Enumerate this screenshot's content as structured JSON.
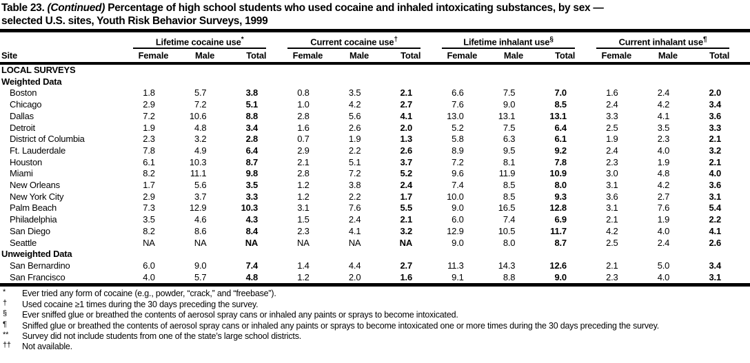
{
  "title": {
    "table_label": "Table 23.",
    "continued": "(Continued)",
    "line1_rest": "Percentage of high school students who used cocaine and inhaled intoxicating substances, by sex —",
    "line2": "selected U.S. sites, Youth Risk Behavior Surveys, 1999"
  },
  "header": {
    "site": "Site",
    "groups": [
      {
        "label": "Lifetime cocaine use",
        "marker": "*"
      },
      {
        "label": "Current cocaine use",
        "marker": "†"
      },
      {
        "label": "Lifetime inhalant use",
        "marker": "§"
      },
      {
        "label": "Current inhalant use",
        "marker": "¶"
      }
    ],
    "columns": [
      "Female",
      "Male",
      "Total"
    ]
  },
  "rows": [
    {
      "type": "section",
      "label": "LOCAL SURVEYS"
    },
    {
      "type": "section",
      "label": "Weighted Data"
    },
    {
      "type": "data",
      "site": "Boston",
      "values": [
        "1.8",
        "5.7",
        "3.8",
        "0.8",
        "3.5",
        "2.1",
        "6.6",
        "7.5",
        "7.0",
        "1.6",
        "2.4",
        "2.0"
      ]
    },
    {
      "type": "data",
      "site": "Chicago",
      "values": [
        "2.9",
        "7.2",
        "5.1",
        "1.0",
        "4.2",
        "2.7",
        "7.6",
        "9.0",
        "8.5",
        "2.4",
        "4.2",
        "3.4"
      ]
    },
    {
      "type": "data",
      "site": "Dallas",
      "values": [
        "7.2",
        "10.6",
        "8.8",
        "2.8",
        "5.6",
        "4.1",
        "13.0",
        "13.1",
        "13.1",
        "3.3",
        "4.1",
        "3.6"
      ]
    },
    {
      "type": "data",
      "site": "Detroit",
      "values": [
        "1.9",
        "4.8",
        "3.4",
        "1.6",
        "2.6",
        "2.0",
        "5.2",
        "7.5",
        "6.4",
        "2.5",
        "3.5",
        "3.3"
      ]
    },
    {
      "type": "data",
      "site": "District of Columbia",
      "values": [
        "2.3",
        "3.2",
        "2.8",
        "0.7",
        "1.9",
        "1.3",
        "5.8",
        "6.3",
        "6.1",
        "1.9",
        "2.3",
        "2.1"
      ]
    },
    {
      "type": "data",
      "site": "Ft. Lauderdale",
      "values": [
        "7.8",
        "4.9",
        "6.4",
        "2.9",
        "2.2",
        "2.6",
        "8.9",
        "9.5",
        "9.2",
        "2.4",
        "4.0",
        "3.2"
      ]
    },
    {
      "type": "data",
      "site": "Houston",
      "values": [
        "6.1",
        "10.3",
        "8.7",
        "2.1",
        "5.1",
        "3.7",
        "7.2",
        "8.1",
        "7.8",
        "2.3",
        "1.9",
        "2.1"
      ]
    },
    {
      "type": "data",
      "site": "Miami",
      "values": [
        "8.2",
        "11.1",
        "9.8",
        "2.8",
        "7.2",
        "5.2",
        "9.6",
        "11.9",
        "10.9",
        "3.0",
        "4.8",
        "4.0"
      ]
    },
    {
      "type": "data",
      "site": "New Orleans",
      "values": [
        "1.7",
        "5.6",
        "3.5",
        "1.2",
        "3.8",
        "2.4",
        "7.4",
        "8.5",
        "8.0",
        "3.1",
        "4.2",
        "3.6"
      ]
    },
    {
      "type": "data",
      "site": "New York City",
      "values": [
        "2.9",
        "3.7",
        "3.3",
        "1.2",
        "2.2",
        "1.7",
        "10.0",
        "8.5",
        "9.3",
        "3.6",
        "2.7",
        "3.1"
      ]
    },
    {
      "type": "data",
      "site": "Palm Beach",
      "values": [
        "7.3",
        "12.9",
        "10.3",
        "3.1",
        "7.6",
        "5.5",
        "9.0",
        "16.5",
        "12.8",
        "3.1",
        "7.6",
        "5.4"
      ]
    },
    {
      "type": "data",
      "site": "Philadelphia",
      "values": [
        "3.5",
        "4.6",
        "4.3",
        "1.5",
        "2.4",
        "2.1",
        "6.0",
        "7.4",
        "6.9",
        "2.1",
        "1.9",
        "2.2"
      ]
    },
    {
      "type": "data",
      "site": "San Diego",
      "values": [
        "8.2",
        "8.6",
        "8.4",
        "2.3",
        "4.1",
        "3.2",
        "12.9",
        "10.5",
        "11.7",
        "4.2",
        "4.0",
        "4.1"
      ]
    },
    {
      "type": "data",
      "site": "Seattle",
      "values": [
        "NA",
        "NA",
        "NA",
        "NA",
        "NA",
        "NA",
        "9.0",
        "8.0",
        "8.7",
        "2.5",
        "2.4",
        "2.6"
      ]
    },
    {
      "type": "section",
      "label": "Unweighted Data"
    },
    {
      "type": "data",
      "site": "San Bernardino",
      "values": [
        "6.0",
        "9.0",
        "7.4",
        "1.4",
        "4.4",
        "2.7",
        "11.3",
        "14.3",
        "12.6",
        "2.1",
        "5.0",
        "3.4"
      ]
    },
    {
      "type": "data",
      "site": "San Francisco",
      "values": [
        "4.0",
        "5.7",
        "4.8",
        "1.2",
        "2.0",
        "1.6",
        "9.1",
        "8.8",
        "9.0",
        "2.3",
        "4.0",
        "3.1"
      ]
    }
  ],
  "footnotes": [
    {
      "marker": "*",
      "text": "Ever tried any form of cocaine (e.g., powder, “crack,” and “freebase”)."
    },
    {
      "marker": "†",
      "text": "Used cocaine ≥1 times during the 30 days preceding the survey."
    },
    {
      "marker": "§",
      "text": "Ever sniffed glue or breathed the contents of aerosol spray cans or inhaled any paints or sprays to become intoxicated."
    },
    {
      "marker": "¶",
      "text": "Sniffed glue or breathed the contents of aerosol spray cans or inhaled any paints or sprays to become intoxicated one or more times during the 30 days preceding the survey."
    },
    {
      "marker": "**",
      "text": "Survey did not include students from one of the state’s large school districts."
    },
    {
      "marker": "††",
      "text": "Not available."
    }
  ]
}
